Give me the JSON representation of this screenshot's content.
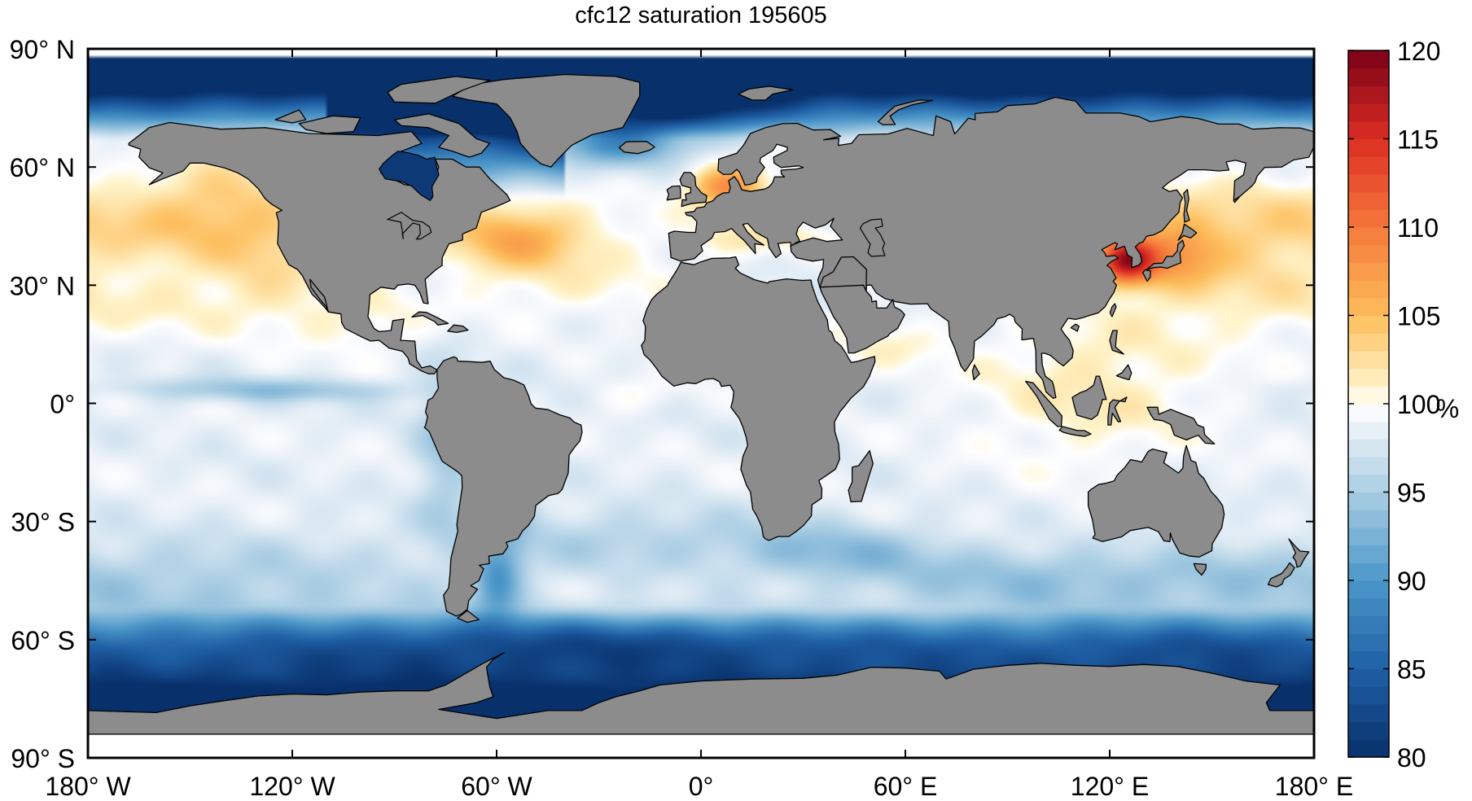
{
  "title": "cfc12 saturation 195605",
  "map": {
    "projection": "equirectangular",
    "extent": {
      "lon": [
        -180,
        180
      ],
      "lat": [
        -90,
        90
      ]
    },
    "land_color": "#8c8c8c",
    "coast_color": "#000000",
    "missing_color": "#ffffff",
    "lat_ticks": [
      {
        "value": 90,
        "label": "90° N"
      },
      {
        "value": 60,
        "label": "60° N"
      },
      {
        "value": 30,
        "label": "30° N"
      },
      {
        "value": 0,
        "label": "0°"
      },
      {
        "value": -30,
        "label": "30° S"
      },
      {
        "value": -60,
        "label": "60° S"
      },
      {
        "value": -90,
        "label": "90° S"
      }
    ],
    "lon_ticks": [
      {
        "value": -180,
        "label": "180° W"
      },
      {
        "value": -120,
        "label": "120° W"
      },
      {
        "value": -60,
        "label": "60° W"
      },
      {
        "value": 0,
        "label": "0°"
      },
      {
        "value": 60,
        "label": "60° E"
      },
      {
        "value": 120,
        "label": "120° E"
      },
      {
        "value": 180,
        "label": "180° E"
      }
    ]
  },
  "colorbar": {
    "unit": "%",
    "range": [
      80,
      120
    ],
    "ticks": [
      80,
      85,
      90,
      95,
      100,
      105,
      110,
      115,
      120
    ],
    "bands": 40,
    "stops": [
      {
        "v": 80,
        "c": "#08306b"
      },
      {
        "v": 85,
        "c": "#1f5fa5"
      },
      {
        "v": 90,
        "c": "#4a96c8"
      },
      {
        "v": 95,
        "c": "#a9cde3"
      },
      {
        "v": 99,
        "c": "#f1f5fa"
      },
      {
        "v": 100,
        "c": "#ffffff"
      },
      {
        "v": 101,
        "c": "#fff3c8"
      },
      {
        "v": 105,
        "c": "#fdbd5a"
      },
      {
        "v": 110,
        "c": "#f5793a"
      },
      {
        "v": 115,
        "c": "#dc2d23"
      },
      {
        "v": 120,
        "c": "#7a0017"
      }
    ]
  },
  "chart_data": {
    "type": "heatmap",
    "title": "cfc12 saturation 195605",
    "variable": "cfc12 saturation",
    "unit": "%",
    "value_range": [
      80,
      120
    ],
    "regions": [
      {
        "region": "Arctic Ocean",
        "value": 81
      },
      {
        "region": "Labrador Sea / Baffin Bay",
        "value": 81
      },
      {
        "region": "Nordic Seas",
        "value": 92
      },
      {
        "region": "North Sea / Baltic",
        "value": 110
      },
      {
        "region": "Mediterranean Sea",
        "value": 103
      },
      {
        "region": "Northwest Atlantic (Gulf Stream)",
        "value": 106
      },
      {
        "region": "North Pacific subtropics",
        "value": 103
      },
      {
        "region": "Tropical Pacific",
        "value": 99
      },
      {
        "region": "Equatorial Pacific upwelling",
        "value": 92
      },
      {
        "region": "Sea of Japan / Yellow Sea",
        "value": 116
      },
      {
        "region": "Maritime Continent",
        "value": 103
      },
      {
        "region": "Indian Ocean",
        "value": 99
      },
      {
        "region": "South Atlantic",
        "value": 97
      },
      {
        "region": "Southern Ocean (40-60 S)",
        "value": 90
      },
      {
        "region": "Antarctic margin",
        "value": 81
      }
    ]
  }
}
